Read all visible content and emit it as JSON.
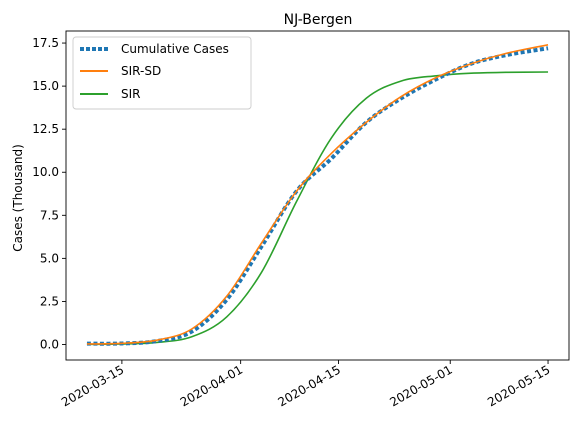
{
  "chart_data": {
    "type": "line",
    "title": "NJ-Bergen",
    "xlabel": "",
    "ylabel": "Cases (Thousand)",
    "x_ticks": [
      "2020-03-15",
      "2020-04-01",
      "2020-04-15",
      "2020-05-01",
      "2020-05-15"
    ],
    "y_ticks": [
      "0.0",
      "2.5",
      "5.0",
      "7.5",
      "10.0",
      "12.5",
      "15.0",
      "17.5"
    ],
    "xlim": [
      "2020-03-07",
      "2020-05-18"
    ],
    "ylim": [
      -0.9,
      18.2
    ],
    "grid": false,
    "legend_position": "top-left",
    "series": [
      {
        "name": "Cumulative Cases",
        "style": "dotted",
        "color": "#1f77b4",
        "points": [
          [
            "2020-03-10",
            0.05
          ],
          [
            "2020-03-15",
            0.06
          ],
          [
            "2020-03-20",
            0.2
          ],
          [
            "2020-03-25",
            0.75
          ],
          [
            "2020-03-30",
            2.6
          ],
          [
            "2020-04-04",
            5.7
          ],
          [
            "2020-04-09",
            8.9
          ],
          [
            "2020-04-14",
            10.8
          ],
          [
            "2020-04-19",
            12.9
          ],
          [
            "2020-04-24",
            14.3
          ],
          [
            "2020-04-29",
            15.4
          ],
          [
            "2020-05-04",
            16.3
          ],
          [
            "2020-05-09",
            16.8
          ],
          [
            "2020-05-15",
            17.2
          ]
        ]
      },
      {
        "name": "SIR-SD",
        "style": "solid",
        "color": "#ff7f0e",
        "points": [
          [
            "2020-03-10",
            0.03
          ],
          [
            "2020-03-15",
            0.07
          ],
          [
            "2020-03-20",
            0.25
          ],
          [
            "2020-03-25",
            0.9
          ],
          [
            "2020-03-30",
            2.8
          ],
          [
            "2020-04-04",
            5.9
          ],
          [
            "2020-04-09",
            8.9
          ],
          [
            "2020-04-14",
            11.1
          ],
          [
            "2020-04-19",
            12.9
          ],
          [
            "2020-04-24",
            14.4
          ],
          [
            "2020-04-29",
            15.5
          ],
          [
            "2020-05-04",
            16.3
          ],
          [
            "2020-05-09",
            16.9
          ],
          [
            "2020-05-15",
            17.4
          ]
        ]
      },
      {
        "name": "SIR",
        "style": "solid",
        "color": "#2ca02c",
        "points": [
          [
            "2020-03-10",
            0.01
          ],
          [
            "2020-03-15",
            0.03
          ],
          [
            "2020-03-20",
            0.12
          ],
          [
            "2020-03-25",
            0.45
          ],
          [
            "2020-03-30",
            1.6
          ],
          [
            "2020-04-04",
            4.2
          ],
          [
            "2020-04-09",
            8.3
          ],
          [
            "2020-04-14",
            12.0
          ],
          [
            "2020-04-19",
            14.3
          ],
          [
            "2020-04-24",
            15.3
          ],
          [
            "2020-04-29",
            15.6
          ],
          [
            "2020-05-04",
            15.75
          ],
          [
            "2020-05-09",
            15.8
          ],
          [
            "2020-05-15",
            15.82
          ]
        ]
      }
    ]
  }
}
